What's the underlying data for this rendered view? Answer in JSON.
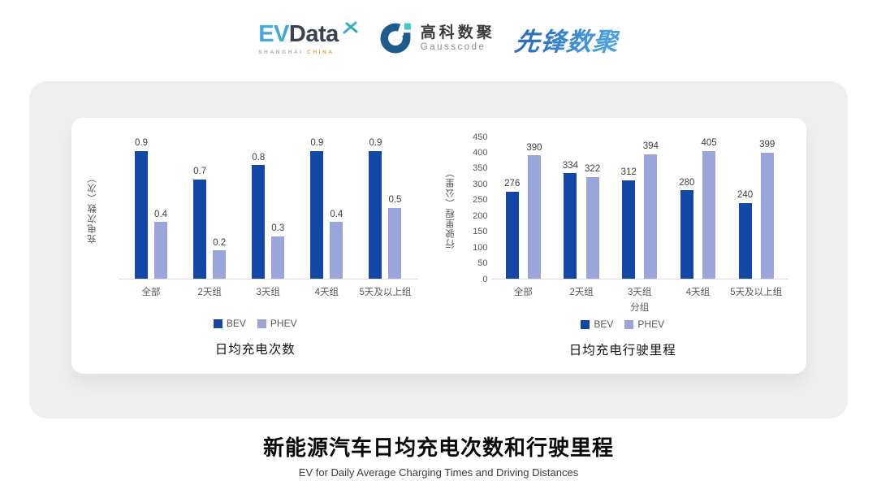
{
  "header": {
    "evdata": {
      "ev": "EV",
      "data": "Data",
      "tagline_left": "SHANGHAI",
      "tagline_right": "CHINA"
    },
    "gausscode": {
      "name_cn": "高科数聚",
      "name_en": "Gausscode"
    },
    "xianfeng": {
      "name": "先锋数聚"
    }
  },
  "chart_data": [
    {
      "type": "bar",
      "title": "日均充电次数",
      "ylabel": "充电次数（次）",
      "xlabel": "",
      "categories": [
        "全部",
        "2天组",
        "3天组",
        "4天组",
        "5天及以上组"
      ],
      "series": [
        {
          "name": "BEV",
          "color": "#1247a5",
          "values": [
            0.9,
            0.7,
            0.8,
            0.9,
            0.9
          ]
        },
        {
          "name": "PHEV",
          "color": "#9aa6d9",
          "values": [
            0.4,
            0.2,
            0.3,
            0.4,
            0.5
          ]
        }
      ],
      "ylim": [
        0,
        1
      ],
      "y_ticks": [],
      "grid": false,
      "legend_position": "bottom",
      "value_labels": true
    },
    {
      "type": "bar",
      "title": "日均充电行驶里程",
      "ylabel": "行驶里程（公里）",
      "xlabel": "分组",
      "categories": [
        "全部",
        "2天组",
        "3天组",
        "4天组",
        "5天及以上组"
      ],
      "series": [
        {
          "name": "BEV",
          "color": "#1247a5",
          "values": [
            276,
            334,
            312,
            280,
            240
          ]
        },
        {
          "name": "PHEV",
          "color": "#9aa6d9",
          "values": [
            390,
            322,
            394,
            405,
            399
          ]
        }
      ],
      "ylim": [
        0,
        450
      ],
      "y_ticks": [
        0,
        50,
        100,
        150,
        200,
        250,
        300,
        350,
        400,
        450
      ],
      "grid": false,
      "legend_position": "bottom",
      "value_labels": true
    }
  ],
  "footer": {
    "title": "新能源汽车日均充电次数和行驶里程",
    "subtitle": "EV for Daily Average Charging Times and Driving Distances"
  },
  "colors": {
    "bev": "#1247a5",
    "phev": "#9aa6d9",
    "axis_line": "#dcdcdc",
    "axis_text": "#595959",
    "value_label_text": "#3d3d3d",
    "panel_bg": "#efefef",
    "card_bg": "#ffffff"
  }
}
